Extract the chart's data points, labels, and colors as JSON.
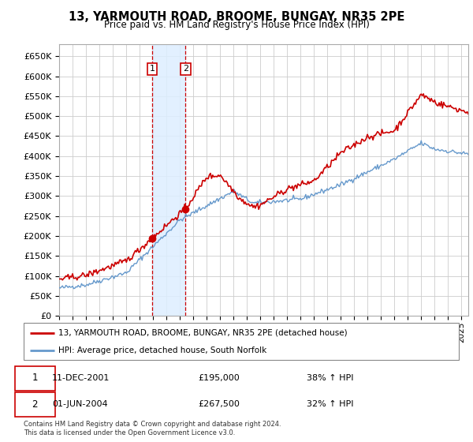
{
  "title": "13, YARMOUTH ROAD, BROOME, BUNGAY, NR35 2PE",
  "subtitle": "Price paid vs. HM Land Registry's House Price Index (HPI)",
  "ylabel_ticks": [
    "£0",
    "£50K",
    "£100K",
    "£150K",
    "£200K",
    "£250K",
    "£300K",
    "£350K",
    "£400K",
    "£450K",
    "£500K",
    "£550K",
    "£600K",
    "£650K"
  ],
  "ytick_values": [
    0,
    50000,
    100000,
    150000,
    200000,
    250000,
    300000,
    350000,
    400000,
    450000,
    500000,
    550000,
    600000,
    650000
  ],
  "ylim": [
    0,
    680000
  ],
  "xlim_start": 1995.0,
  "xlim_end": 2025.5,
  "sale1_x": 2001.94,
  "sale1_y": 195000,
  "sale2_x": 2004.42,
  "sale2_y": 267500,
  "legend_line1": "13, YARMOUTH ROAD, BROOME, BUNGAY, NR35 2PE (detached house)",
  "legend_line2": "HPI: Average price, detached house, South Norfolk",
  "footer": "Contains HM Land Registry data © Crown copyright and database right 2024.\nThis data is licensed under the Open Government Licence v3.0.",
  "red_color": "#cc0000",
  "blue_color": "#6699cc",
  "highlight_color": "#ddeeff",
  "grid_color": "#cccccc"
}
